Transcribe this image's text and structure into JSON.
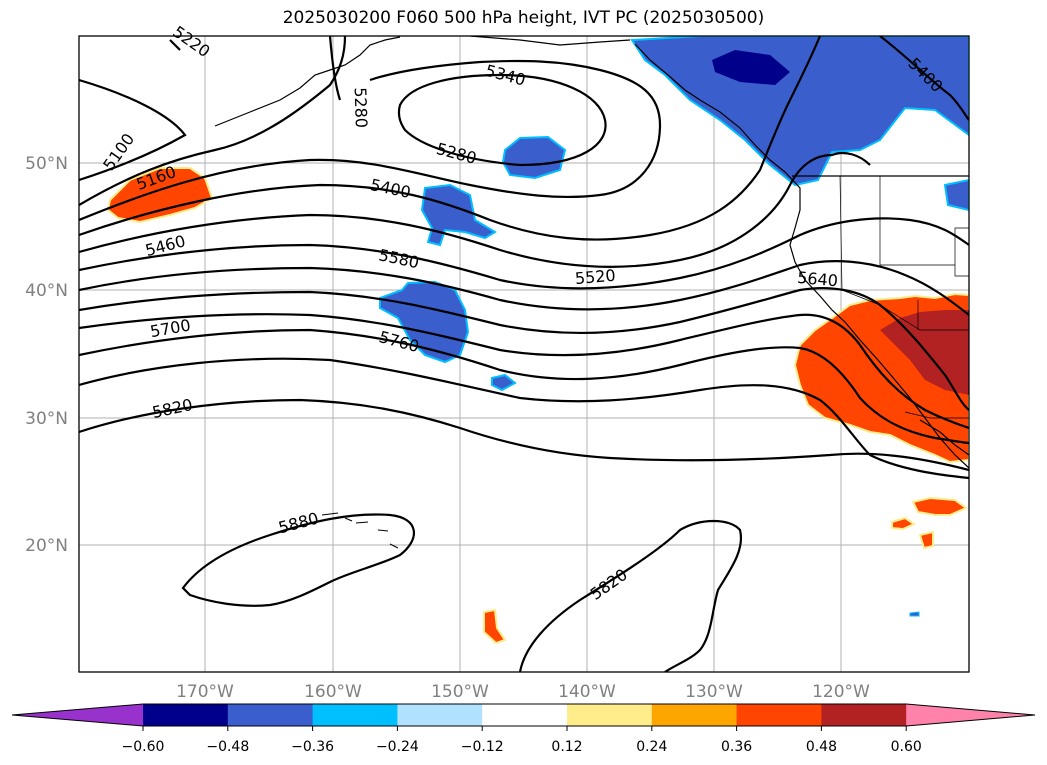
{
  "title": "2025030200 F060 500 hPa height, IVT PC (2025030500)",
  "lat_labels": [
    "50°N",
    "40°N",
    "30°N",
    "20°N"
  ],
  "lon_labels": [
    "170°W",
    "160°W",
    "150°W",
    "140°W",
    "130°W",
    "120°W"
  ],
  "contour_labels": [
    "5100",
    "5160",
    "5460",
    "5700",
    "5820",
    "5880",
    "5820",
    "5340",
    "5280",
    "5400",
    "5580",
    "5520",
    "5760",
    "5640",
    "5400",
    "5280",
    "5220"
  ],
  "colorbar": {
    "ticks": [
      "−0.60",
      "−0.48",
      "−0.36",
      "−0.24",
      "−0.12",
      "0.12",
      "0.24",
      "0.36",
      "0.48",
      "0.60"
    ],
    "colors": [
      "#9932cc",
      "#00008b",
      "#3a5fcd",
      "#00bfff",
      "#b0e2ff",
      "#ffffff",
      "#ffec8b",
      "#ffa500",
      "#ff4500",
      "#b22222",
      "#ff82ab"
    ]
  },
  "colors": {
    "negative_fill": "#3a5fcd",
    "negative_core": "#00008b",
    "positive_fill": "#ff4500",
    "positive_core": "#b22222",
    "edge_light_blue": "#00bfff",
    "edge_yellow": "#ffec8b"
  }
}
